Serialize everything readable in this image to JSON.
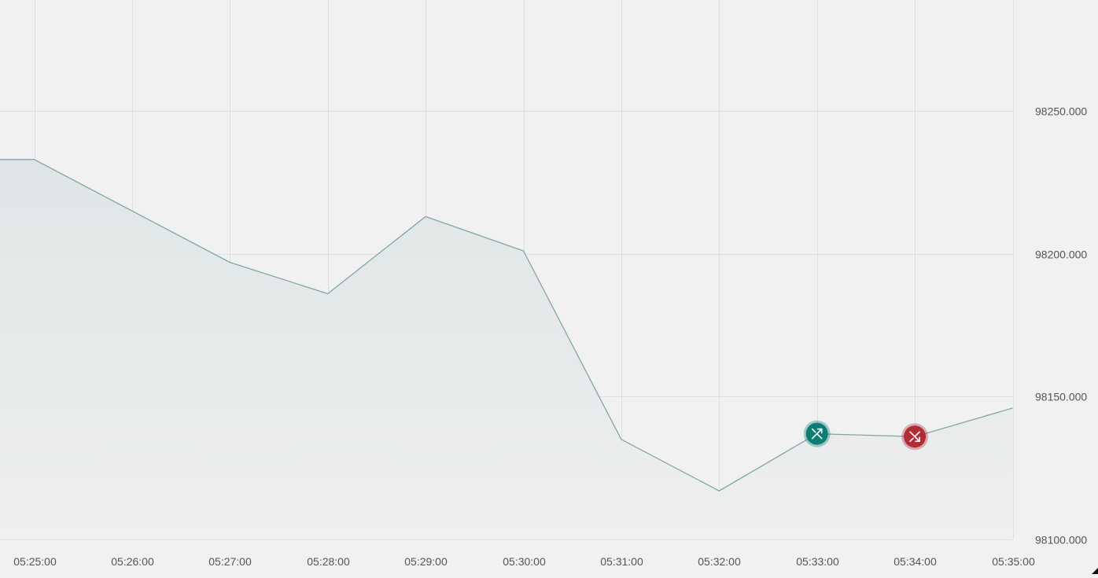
{
  "colors": {
    "background": "#f1f1f1",
    "grid": "#dedede",
    "line": "#7fa7a5",
    "area": "#e3e8e8",
    "buy_marker": "#0e7e74",
    "sell_marker": "#b12c36"
  },
  "chart_data": {
    "type": "area",
    "title": "",
    "xlabel": "",
    "ylabel": "",
    "grid": true,
    "legend": "none",
    "x_domain": [
      "05:24:40",
      "05:35:00"
    ],
    "ylim": [
      98100,
      98290
    ],
    "y_ticks": [
      "98250.000",
      "98200.000",
      "98150.000",
      "98100.000"
    ],
    "x_ticks": [
      "05:25:00",
      "05:26:00",
      "05:27:00",
      "05:28:00",
      "05:29:00",
      "05:30:00",
      "05:31:00",
      "05:32:00",
      "05:33:00",
      "05:34:00",
      "05:35:00"
    ],
    "series": [
      {
        "x": [
          "05:24:40",
          "05:25:00",
          "05:26:00",
          "05:27:00",
          "05:28:00",
          "05:29:00",
          "05:30:00",
          "05:31:00",
          "05:32:00",
          "05:33:00",
          "05:34:00",
          "05:35:00"
        ],
        "values": [
          98233,
          98233,
          98215,
          98197,
          98186,
          98213,
          98201,
          98135,
          98117,
          98137,
          98136,
          98146
        ]
      }
    ],
    "markers": [
      {
        "type": "buy",
        "x": "05:33:00",
        "y": 98137,
        "icon": "arrow-up-right-icon"
      },
      {
        "type": "sell",
        "x": "05:34:00",
        "y": 98136,
        "icon": "arrow-down-right-icon"
      }
    ]
  }
}
